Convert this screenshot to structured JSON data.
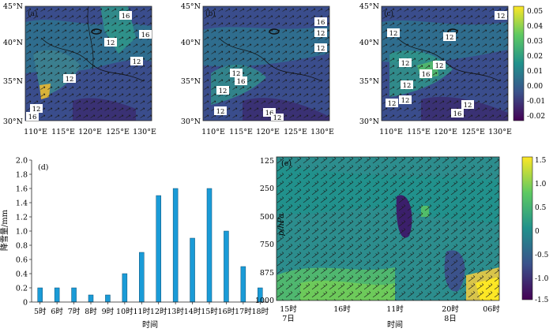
{
  "figure": {
    "maps": [
      {
        "panel_label": "(a)",
        "lat_ticks": [
          "45°N",
          "40°N",
          "35°N",
          "30°N"
        ],
        "lon_ticks": [
          "110°E",
          "115°E",
          "120°E",
          "125°E",
          "130°E"
        ],
        "contour_labels": [
          "16",
          "16",
          "12",
          "12",
          "12",
          "12",
          "16"
        ]
      },
      {
        "panel_label": "(b)",
        "lat_ticks": [
          "45°N",
          "40°N",
          "35°N",
          "30°N"
        ],
        "lon_ticks": [
          "110°E",
          "115°E",
          "120°E",
          "125°E",
          "130°E"
        ],
        "contour_labels": [
          "16",
          "12",
          "12",
          "12",
          "16",
          "12",
          "12",
          "16",
          "12"
        ]
      },
      {
        "panel_label": "(c)",
        "lat_ticks": [
          "45°N",
          "40°N",
          "35°N",
          "30°N"
        ],
        "lon_ticks": [
          "110°E",
          "115°E",
          "120°E",
          "125°E",
          "130°E"
        ],
        "contour_labels": [
          "12",
          "12",
          "12",
          "12",
          "12",
          "16",
          "12",
          "12",
          "12",
          "12",
          "16"
        ]
      }
    ],
    "map_colorbar": {
      "ticks": [
        "0.05",
        "0.04",
        "0.03",
        "0.02",
        "0.01",
        "0.00",
        "-0.01",
        "-0.02"
      ],
      "range": [
        -0.02,
        0.05
      ]
    },
    "section": {
      "panel_label": "(e)",
      "ylabel": "p/hPa",
      "xlabel": "时间",
      "y_ticks": [
        "125",
        "250",
        "500",
        "750",
        "875",
        "1000"
      ],
      "x_ticks": [
        {
          "line1": "15时",
          "line2": "7日"
        },
        {
          "line1": "16时",
          "line2": ""
        },
        {
          "line1": "11时",
          "line2": ""
        },
        {
          "line1": "20时",
          "line2": "8日"
        },
        {
          "line1": "06时",
          "line2": ""
        }
      ]
    },
    "section_colorbar": {
      "ticks": [
        "1.5",
        "1.0",
        "0.5",
        "0",
        "-0.5",
        "-1.0",
        "-1.5"
      ],
      "range": [
        -1.5,
        1.5
      ]
    },
    "colors": {
      "bar": "#1a9bd7",
      "cmap": [
        "#440154",
        "#3b528b",
        "#21918c",
        "#5ec962",
        "#fde725"
      ]
    }
  },
  "chart_data": {
    "type": "bar",
    "panel_label": "(d)",
    "categories": [
      "5时",
      "6时",
      "7时",
      "8时",
      "9时",
      "10时",
      "11时",
      "12时",
      "13时",
      "14时",
      "15时",
      "16时",
      "17时",
      "18时"
    ],
    "values": [
      0.2,
      0.2,
      0.2,
      0.1,
      0.1,
      0.4,
      0.7,
      1.5,
      1.6,
      0.9,
      1.6,
      1.0,
      0.5,
      0.2
    ],
    "xlabel": "时间",
    "ylabel": "降雪量/mm",
    "ylim": [
      0,
      2.0
    ],
    "yticks": [
      "0",
      "0.2",
      "0.4",
      "0.6",
      "0.8",
      "1.0",
      "1.2",
      "1.4",
      "1.6",
      "1.8",
      "2.0"
    ],
    "grid": false,
    "legend": "none"
  }
}
